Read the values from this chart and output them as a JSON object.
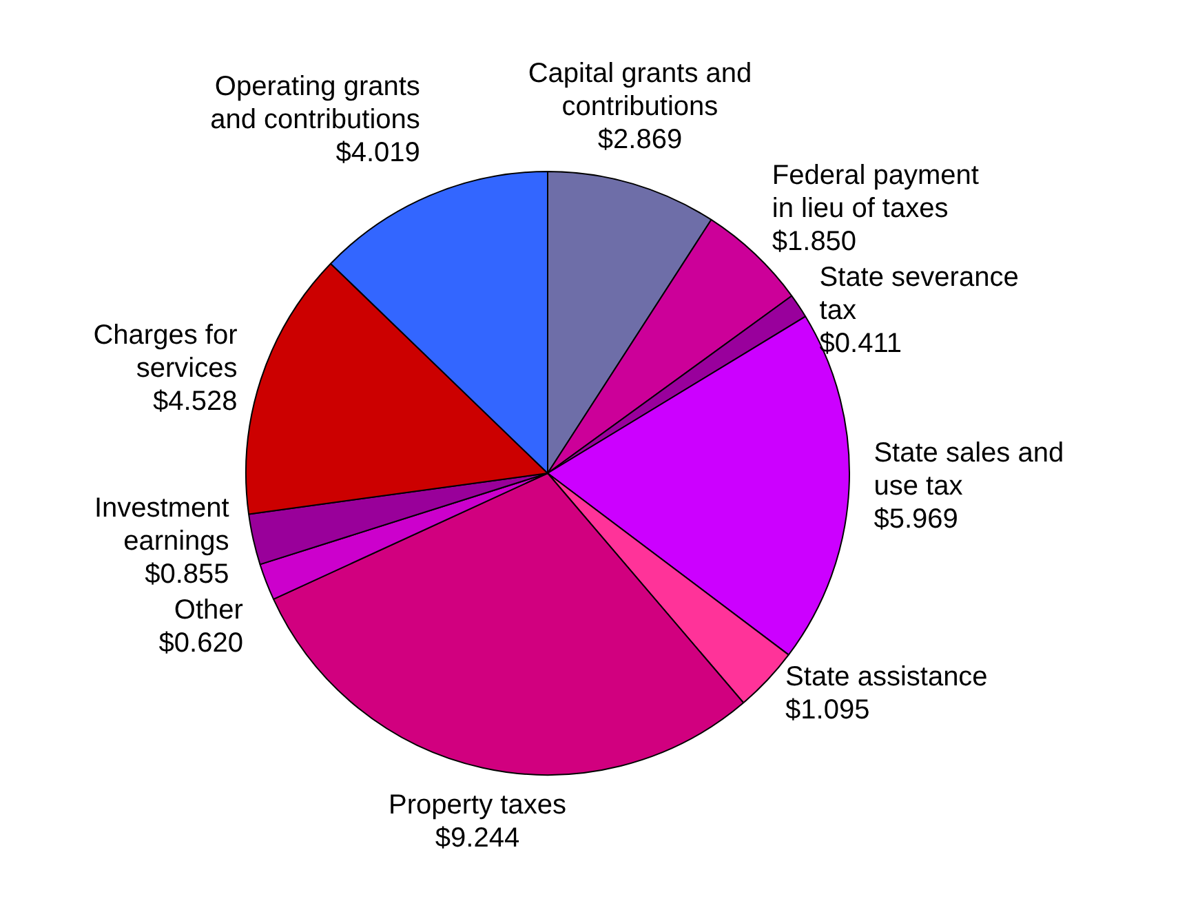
{
  "chart_data": {
    "type": "pie",
    "categories": [
      "Capital grants and contributions",
      "Federal payment in lieu of taxes",
      "State severance tax",
      "State sales and use tax",
      "State assistance",
      "Property taxes",
      "Other",
      "Investment earnings",
      "Charges for services",
      "Operating grants and contributions"
    ],
    "values": [
      2.869,
      1.85,
      0.411,
      5.969,
      1.095,
      9.244,
      0.62,
      0.855,
      4.528,
      4.019
    ],
    "value_labels": [
      "$2.869",
      "$1.850",
      "$0.411",
      "$5.969",
      "$1.095",
      "$9.244",
      "$0.620",
      "$0.855",
      "$4.528",
      "$4.019"
    ],
    "colors": [
      "#6e6ea8",
      "#cc0099",
      "#99009c",
      "#cc00ff",
      "#ff3399",
      "#d1007f",
      "#cc00cc",
      "#99009a",
      "#cc0000",
      "#3366ff"
    ],
    "legend": false
  }
}
